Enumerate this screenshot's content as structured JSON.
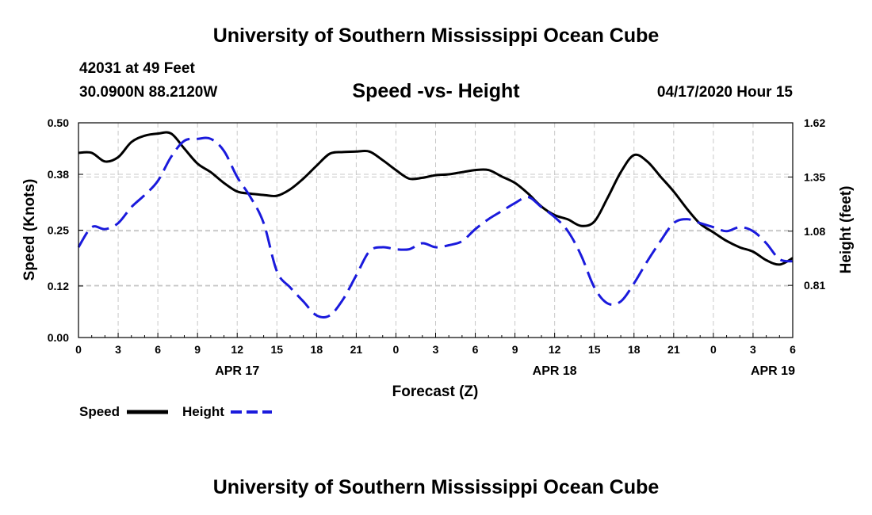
{
  "header": {
    "title": "University of Southern Mississippi Ocean Cube",
    "station": "42031 at 49 Feet",
    "coords": "30.0900N 88.2120W",
    "subtitle": "Speed -vs- Height",
    "datetime": "04/17/2020 Hour 15"
  },
  "footer": {
    "title": "University of Southern Mississippi Ocean Cube"
  },
  "legend": {
    "speed_label": "Speed",
    "height_label": "Height"
  },
  "colors": {
    "speed": "#000000",
    "height": "#1a1adc",
    "grid": "#c8c8c8"
  },
  "chart_data": {
    "type": "line",
    "title": "Speed -vs- Height",
    "xlabel": "Forecast (Z)",
    "ylabel": "Speed (Knots)",
    "y2label": "Height (feet)",
    "xlim": [
      0,
      54
    ],
    "ylim": [
      0,
      0.5
    ],
    "y2lim": [
      0.55,
      1.62
    ],
    "x_ticks": [
      0,
      3,
      6,
      9,
      12,
      15,
      18,
      21,
      24,
      27,
      30,
      33,
      36,
      39,
      42,
      45,
      48,
      51,
      54
    ],
    "x_tick_labels": [
      "0",
      "3",
      "6",
      "9",
      "12",
      "15",
      "18",
      "21",
      "0",
      "3",
      "6",
      "9",
      "12",
      "15",
      "18",
      "21",
      "0",
      "3",
      "6"
    ],
    "date_labels": [
      {
        "x": 12,
        "label": "APR 17"
      },
      {
        "x": 36,
        "label": "APR 18"
      },
      {
        "x": 52.5,
        "label": "APR 19"
      }
    ],
    "y_ticks": [
      0.0,
      0.12,
      0.25,
      0.38,
      0.5
    ],
    "y_tick_labels": [
      "0.00",
      "0.12",
      "0.25",
      "0.38",
      "0.50"
    ],
    "y2_ticks": [
      0.81,
      1.08,
      1.35,
      1.62
    ],
    "y2_tick_labels": [
      "0.81",
      "1.08",
      "1.35",
      "1.62"
    ],
    "grid": true,
    "series": [
      {
        "name": "Speed",
        "axis": "left",
        "style": "solid",
        "x": [
          0,
          1,
          2,
          3,
          4,
          5,
          6,
          7,
          8,
          9,
          10,
          11,
          12,
          13,
          14,
          15,
          16,
          17,
          18,
          19,
          20,
          21,
          22,
          23,
          24,
          25,
          26,
          27,
          28,
          29,
          30,
          31,
          32,
          33,
          34,
          35,
          36,
          37,
          38,
          39,
          40,
          41,
          42,
          43,
          44,
          45,
          46,
          47,
          48,
          49,
          50,
          51,
          52,
          53,
          54
        ],
        "values": [
          0.43,
          0.43,
          0.41,
          0.42,
          0.455,
          0.47,
          0.475,
          0.475,
          0.44,
          0.405,
          0.385,
          0.36,
          0.34,
          0.335,
          0.332,
          0.33,
          0.345,
          0.37,
          0.4,
          0.428,
          0.432,
          0.433,
          0.433,
          0.413,
          0.39,
          0.37,
          0.372,
          0.378,
          0.38,
          0.385,
          0.39,
          0.39,
          0.375,
          0.36,
          0.335,
          0.305,
          0.285,
          0.275,
          0.26,
          0.27,
          0.325,
          0.385,
          0.425,
          0.41,
          0.375,
          0.34,
          0.3,
          0.265,
          0.245,
          0.225,
          0.21,
          0.2,
          0.18,
          0.17,
          0.185
        ]
      },
      {
        "name": "Height",
        "axis": "right",
        "style": "dashed",
        "x": [
          0,
          1,
          2,
          3,
          4,
          5,
          6,
          7,
          8,
          9,
          10,
          11,
          12,
          13,
          14,
          15,
          16,
          17,
          18,
          19,
          20,
          21,
          22,
          23,
          24,
          25,
          26,
          27,
          28,
          29,
          30,
          31,
          32,
          33,
          34,
          35,
          36,
          37,
          38,
          39,
          40,
          41,
          42,
          43,
          44,
          45,
          46,
          47,
          48,
          49,
          50,
          51,
          52,
          53,
          54
        ],
        "values": [
          1.0,
          1.1,
          1.09,
          1.12,
          1.2,
          1.26,
          1.33,
          1.45,
          1.53,
          1.54,
          1.54,
          1.48,
          1.35,
          1.25,
          1.12,
          0.88,
          0.8,
          0.73,
          0.66,
          0.66,
          0.74,
          0.86,
          0.98,
          1.0,
          0.99,
          0.99,
          1.02,
          1.0,
          1.01,
          1.03,
          1.09,
          1.14,
          1.18,
          1.22,
          1.25,
          1.2,
          1.15,
          1.08,
          0.96,
          0.8,
          0.72,
          0.73,
          0.82,
          0.93,
          1.03,
          1.12,
          1.14,
          1.12,
          1.1,
          1.08,
          1.1,
          1.08,
          1.02,
          0.94,
          0.93
        ]
      }
    ]
  }
}
